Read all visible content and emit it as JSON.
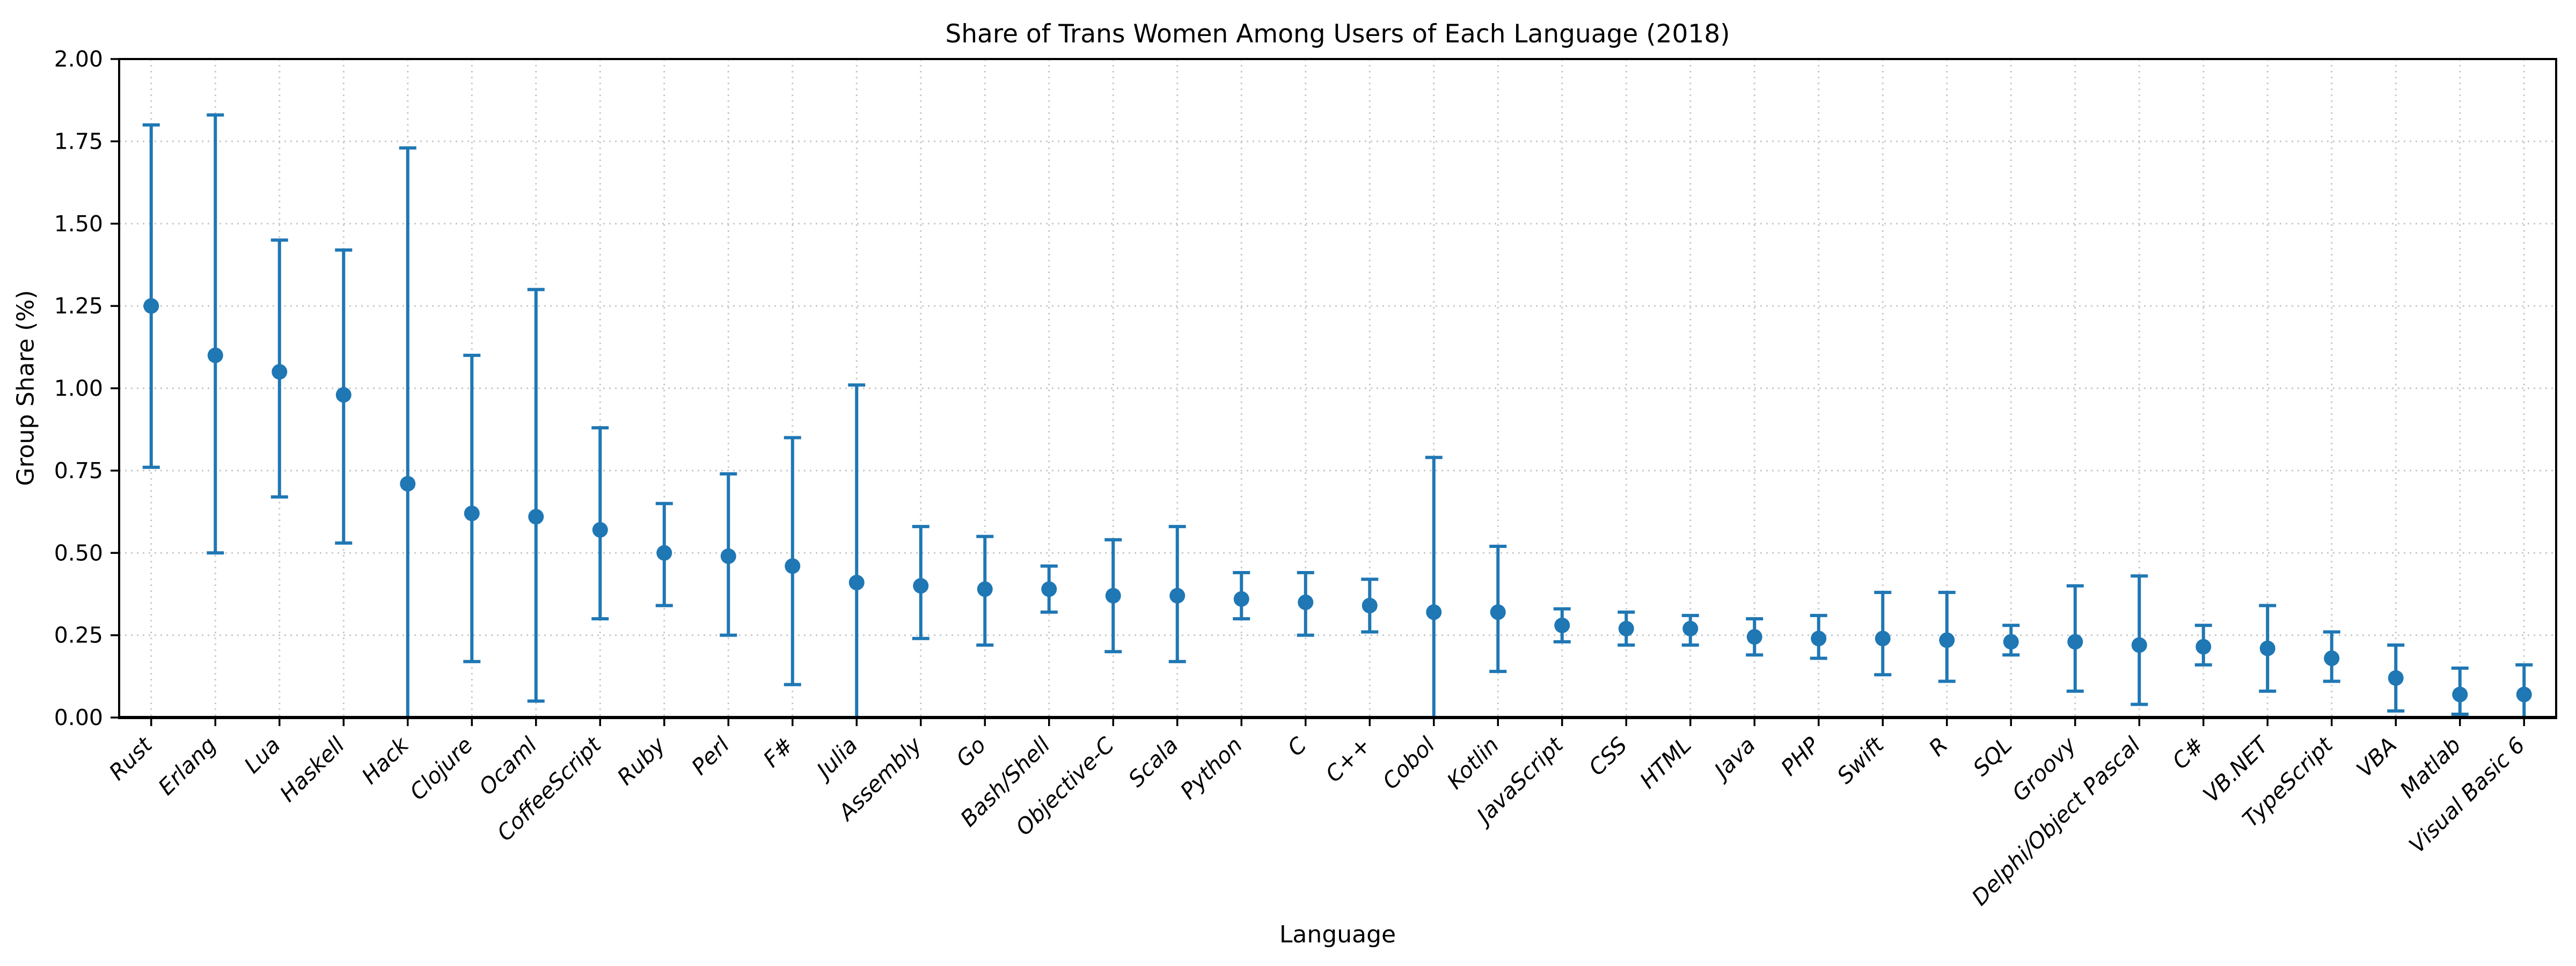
{
  "chart_data": {
    "type": "scatter",
    "subtype": "points-with-error-bars",
    "title": "Share of Trans Women Among Users of Each Language (2018)",
    "xlabel": "Language",
    "ylabel": "Group Share (%)",
    "ylim": [
      0.0,
      2.0
    ],
    "ytick_values": [
      0.0,
      0.25,
      0.5,
      0.75,
      1.0,
      1.25,
      1.5,
      1.75,
      2.0
    ],
    "ytick_labels": [
      "0.00",
      "0.25",
      "0.50",
      "0.75",
      "1.00",
      "1.25",
      "1.50",
      "1.75",
      "2.00"
    ],
    "grid": "dotted",
    "legend_position": "none",
    "point_color": "#1f77b4",
    "errorbar_color": "#1f77b4",
    "grid_color": "#c9c9c9",
    "categories": [
      "Rust",
      "Erlang",
      "Lua",
      "Haskell",
      "Hack",
      "Clojure",
      "Ocaml",
      "CoffeeScript",
      "Ruby",
      "Perl",
      "F#",
      "Julia",
      "Assembly",
      "Go",
      "Bash/Shell",
      "Objective-C",
      "Scala",
      "Python",
      "C",
      "C++",
      "Cobol",
      "Kotlin",
      "JavaScript",
      "CSS",
      "HTML",
      "Java",
      "PHP",
      "Swift",
      "R",
      "SQL",
      "Groovy",
      "Delphi/Object Pascal",
      "C#",
      "VB.NET",
      "TypeScript",
      "VBA",
      "Matlab",
      "Visual Basic 6"
    ],
    "values": [
      1.25,
      1.1,
      1.05,
      0.98,
      0.71,
      0.62,
      0.61,
      0.57,
      0.5,
      0.49,
      0.46,
      0.41,
      0.4,
      0.39,
      0.39,
      0.37,
      0.37,
      0.36,
      0.35,
      0.34,
      0.32,
      0.32,
      0.28,
      0.27,
      0.27,
      0.245,
      0.24,
      0.24,
      0.235,
      0.23,
      0.23,
      0.22,
      0.215,
      0.21,
      0.18,
      0.12,
      0.07,
      0.07
    ],
    "err_low": [
      0.76,
      0.5,
      0.67,
      0.53,
      0.0,
      0.17,
      0.05,
      0.3,
      0.34,
      0.25,
      0.1,
      0.0,
      0.24,
      0.22,
      0.32,
      0.2,
      0.17,
      0.3,
      0.25,
      0.26,
      0.0,
      0.14,
      0.23,
      0.22,
      0.22,
      0.19,
      0.18,
      0.13,
      0.11,
      0.19,
      0.08,
      0.04,
      0.16,
      0.08,
      0.11,
      0.02,
      0.01,
      0.0
    ],
    "err_high": [
      1.8,
      1.83,
      1.45,
      1.42,
      1.73,
      1.1,
      1.3,
      0.88,
      0.65,
      0.74,
      0.85,
      1.01,
      0.58,
      0.55,
      0.46,
      0.54,
      0.58,
      0.44,
      0.44,
      0.42,
      0.79,
      0.52,
      0.33,
      0.32,
      0.31,
      0.3,
      0.31,
      0.38,
      0.38,
      0.28,
      0.4,
      0.43,
      0.28,
      0.34,
      0.26,
      0.22,
      0.15,
      0.16
    ]
  }
}
